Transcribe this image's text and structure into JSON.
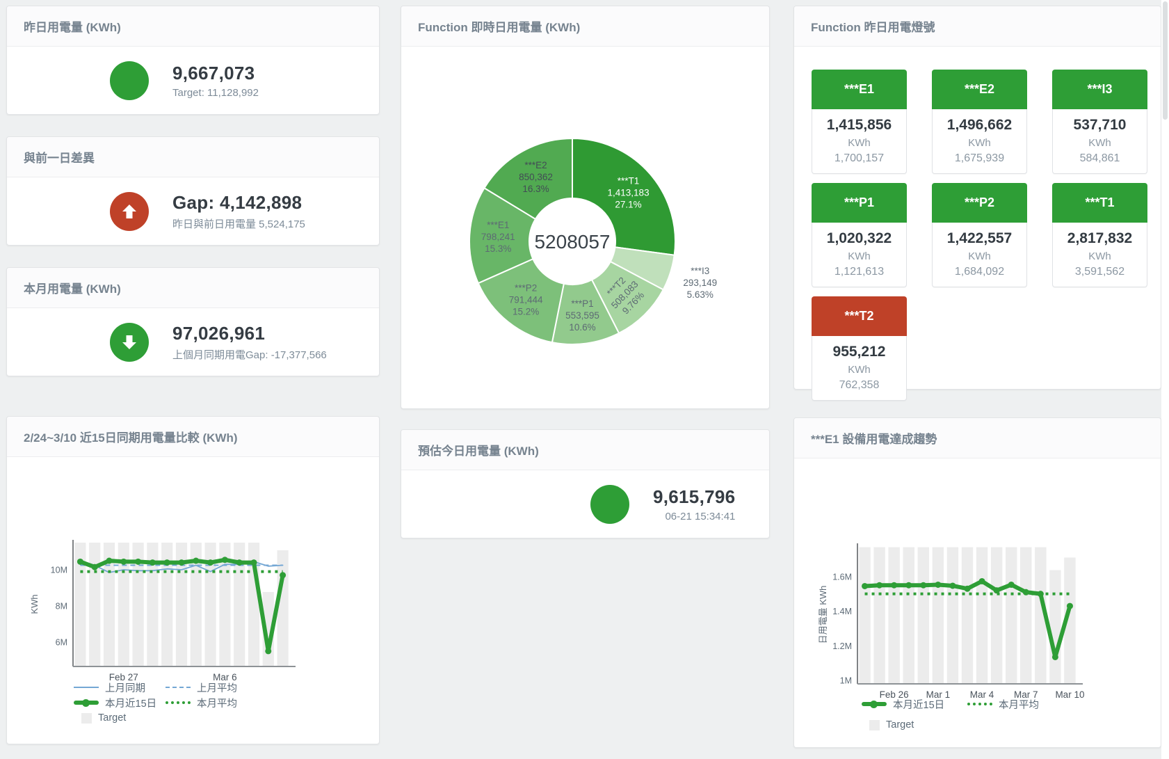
{
  "cards": {
    "yesterday": {
      "title": "昨日用電量 (KWh)",
      "value": "9,667,073",
      "sub": "Target: 11,128,992",
      "status_color": "#2e9e36"
    },
    "gap": {
      "title": "與前一日差異",
      "value": "Gap: 4,142,898",
      "sub": "昨日與前日用電量 5,524,175",
      "status_color": "#bf4128",
      "arrow": "up"
    },
    "month": {
      "title": "本月用電量 (KWh)",
      "value": "97,026,961",
      "sub": "上個月同期用電Gap: -17,377,566",
      "status_color": "#2e9e36",
      "arrow": "down"
    },
    "today_estimate": {
      "title": "預估今日用電量 (KWh)",
      "value": "9,615,796",
      "sub": "06-21 15:34:41",
      "status_color": "#2e9e36"
    }
  },
  "lamp_panel": {
    "title": "Function 昨日用電燈號",
    "unit": "KWh",
    "items": [
      {
        "label": "***E1",
        "value": "1,415,856",
        "target": "1,700,157",
        "color": "#2e9e36"
      },
      {
        "label": "***E2",
        "value": "1,496,662",
        "target": "1,675,939",
        "color": "#2e9e36"
      },
      {
        "label": "***I3",
        "value": "537,710",
        "target": "584,861",
        "color": "#2e9e36"
      },
      {
        "label": "***P1",
        "value": "1,020,322",
        "target": "1,121,613",
        "color": "#2e9e36"
      },
      {
        "label": "***P2",
        "value": "1,422,557",
        "target": "1,684,092",
        "color": "#2e9e36"
      },
      {
        "label": "***T1",
        "value": "2,817,832",
        "target": "3,591,562",
        "color": "#2e9e36"
      },
      {
        "label": "***T2",
        "value": "955,212",
        "target": "762,358",
        "color": "#bf4128"
      }
    ]
  },
  "chart_data": [
    {
      "type": "pie",
      "title": "Function 即時日用電量 (KWh)",
      "center_total": "5208057",
      "slices": [
        {
          "name": "***T1",
          "value": 1413183,
          "pct": "27.1%",
          "color": "#2f9a33",
          "label_color": "#ffffff"
        },
        {
          "name": "***I3",
          "value": 293149,
          "pct": "5.63%",
          "color": "#c0e0bb",
          "label_color": "#5d6a74",
          "outside": true
        },
        {
          "name": "***T2",
          "value": 508083,
          "pct": "9.76%",
          "color": "#a7d5a1",
          "label_color": "#5d6a74",
          "rotate": -46
        },
        {
          "name": "***P1",
          "value": 553595,
          "pct": "10.6%",
          "color": "#92ca8d",
          "label_color": "#5d6a74"
        },
        {
          "name": "***P2",
          "value": 791444,
          "pct": "15.2%",
          "color": "#7dc07a",
          "label_color": "#5d6a74"
        },
        {
          "name": "***E1",
          "value": 798241,
          "pct": "15.3%",
          "color": "#68b667",
          "label_color": "#5d6a74"
        },
        {
          "name": "***E2",
          "value": 850362,
          "pct": "16.3%",
          "color": "#51aa51",
          "label_color": "#424c55"
        }
      ]
    },
    {
      "type": "line",
      "title": "2/24~3/10 近15日同期用電量比較 (KWh)",
      "ylabel": "KWh",
      "ylim": [
        4650000,
        11540000
      ],
      "yticks": [
        {
          "v": 6000000,
          "label": "6M"
        },
        {
          "v": 8000000,
          "label": "8M"
        },
        {
          "v": 10000000,
          "label": "10M"
        }
      ],
      "xticks": [
        {
          "i": 3,
          "label": "Feb 27"
        },
        {
          "i": 10,
          "label": "Mar 6"
        }
      ],
      "x_count": 15,
      "target_label": "Target",
      "target_color": "#ececec",
      "target": [
        11500000,
        11500000,
        11500000,
        11500000,
        11500000,
        11500000,
        11500000,
        11500000,
        11500000,
        11500000,
        11500000,
        11500000,
        11500000,
        8770000,
        11080000
      ],
      "series": [
        {
          "name": "上月同期",
          "color": "#74a7d4",
          "line": "solid",
          "width": 1.8,
          "values": [
            10500000,
            10250000,
            9850000,
            10000000,
            9950000,
            9950000,
            10050000,
            10000000,
            10250000,
            9900000,
            10300000,
            10300000,
            10450000,
            10200000,
            10250000
          ]
        },
        {
          "name": "上月平均",
          "color": "#74a7d4",
          "line": "dashed",
          "width": 2,
          "values": 10250000
        },
        {
          "name": "本月近15日",
          "color": "#2e9e36",
          "line": "solid",
          "width": 6,
          "markers": true,
          "values": [
            10450000,
            10150000,
            10500000,
            10450000,
            10450000,
            10400000,
            10400000,
            10400000,
            10500000,
            10400000,
            10550000,
            10400000,
            10400000,
            5500000,
            9700000
          ]
        },
        {
          "name": "本月平均",
          "color": "#2e9e36",
          "line": "dotted",
          "width": 4,
          "values": 9900000
        }
      ]
    },
    {
      "type": "line",
      "title": "***E1 設備用電達成趨勢",
      "ylabel": "日用電量 KWh",
      "ylim": [
        980000,
        1780000
      ],
      "yticks": [
        {
          "v": 1000000,
          "label": "1M"
        },
        {
          "v": 1200000,
          "label": "1.2M"
        },
        {
          "v": 1400000,
          "label": "1.4M"
        },
        {
          "v": 1600000,
          "label": "1.6M"
        }
      ],
      "xticks": [
        {
          "i": 2,
          "label": "Feb 26"
        },
        {
          "i": 5,
          "label": "Mar 1"
        },
        {
          "i": 8,
          "label": "Mar 4"
        },
        {
          "i": 11,
          "label": "Mar 7"
        },
        {
          "i": 14,
          "label": "Mar 10"
        }
      ],
      "x_count": 15,
      "target_label": "Target",
      "target_color": "#ececec",
      "target": [
        1770000,
        1770000,
        1770000,
        1770000,
        1770000,
        1770000,
        1770000,
        1770000,
        1770000,
        1770000,
        1770000,
        1770000,
        1770000,
        1637000,
        1710000
      ],
      "series": [
        {
          "name": "本月近15日",
          "color": "#2e9e36",
          "line": "solid",
          "width": 6,
          "markers": true,
          "values": [
            1545000,
            1550000,
            1550000,
            1550000,
            1550000,
            1553000,
            1547000,
            1530000,
            1573000,
            1520000,
            1553000,
            1510000,
            1500000,
            1135000,
            1430000
          ]
        },
        {
          "name": "本月平均",
          "color": "#2e9e36",
          "line": "dotted",
          "width": 4,
          "values": 1500000
        }
      ]
    }
  ]
}
